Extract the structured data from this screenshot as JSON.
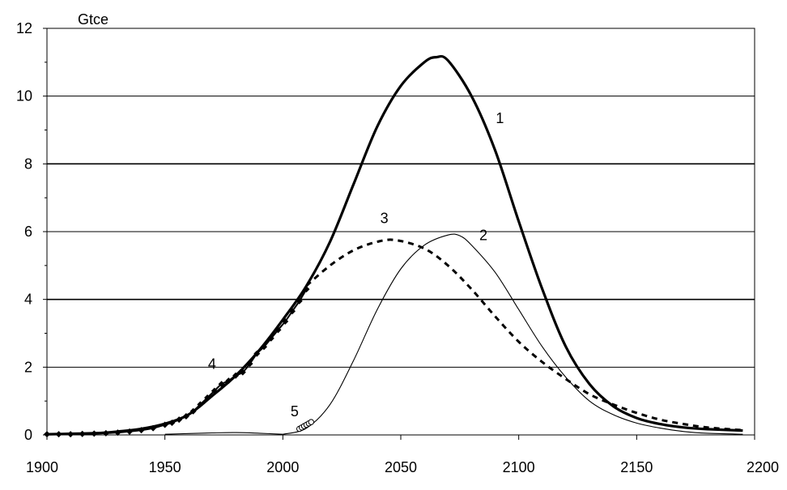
{
  "chart_data": {
    "type": "line",
    "title": "",
    "unit_label": "Gtce",
    "xlabel": "",
    "ylabel": "",
    "xlim": [
      1900,
      2200
    ],
    "ylim": [
      0,
      12
    ],
    "x_ticks": [
      "1900",
      "1950",
      "2000",
      "2050",
      "2100",
      "2150",
      "2200"
    ],
    "y_ticks": [
      "0",
      "2",
      "4",
      "6",
      "8",
      "10",
      "12"
    ],
    "grid": "horizontal",
    "legend": "none",
    "colors": {
      "lines": "#000000",
      "background": "#ffffff"
    },
    "series": [
      {
        "id": "1",
        "label": "1",
        "style": "thick",
        "label_at": [
          2092,
          9.2
        ],
        "points": [
          [
            1900,
            0.02
          ],
          [
            1920,
            0.05
          ],
          [
            1930,
            0.1
          ],
          [
            1940,
            0.18
          ],
          [
            1950,
            0.33
          ],
          [
            1960,
            0.6
          ],
          [
            1970,
            1.15
          ],
          [
            1980,
            1.75
          ],
          [
            1990,
            2.5
          ],
          [
            2000,
            3.4
          ],
          [
            2010,
            4.4
          ],
          [
            2020,
            5.7
          ],
          [
            2030,
            7.4
          ],
          [
            2040,
            9.1
          ],
          [
            2050,
            10.3
          ],
          [
            2060,
            11.0
          ],
          [
            2065,
            11.15
          ],
          [
            2070,
            11.05
          ],
          [
            2080,
            10.0
          ],
          [
            2090,
            8.4
          ],
          [
            2100,
            6.3
          ],
          [
            2110,
            4.3
          ],
          [
            2120,
            2.6
          ],
          [
            2130,
            1.5
          ],
          [
            2140,
            0.85
          ],
          [
            2150,
            0.5
          ],
          [
            2160,
            0.32
          ],
          [
            2170,
            0.22
          ],
          [
            2180,
            0.17
          ],
          [
            2195,
            0.13
          ]
        ]
      },
      {
        "id": "2",
        "label": "2",
        "style": "thin",
        "label_at": [
          2085,
          5.75
        ],
        "points": [
          [
            2000,
            0.02
          ],
          [
            2010,
            0.2
          ],
          [
            2020,
            0.9
          ],
          [
            2030,
            2.2
          ],
          [
            2040,
            3.7
          ],
          [
            2050,
            4.9
          ],
          [
            2060,
            5.6
          ],
          [
            2070,
            5.9
          ],
          [
            2075,
            5.88
          ],
          [
            2080,
            5.6
          ],
          [
            2090,
            4.8
          ],
          [
            2100,
            3.7
          ],
          [
            2110,
            2.6
          ],
          [
            2120,
            1.7
          ],
          [
            2130,
            1.0
          ],
          [
            2140,
            0.6
          ],
          [
            2150,
            0.35
          ],
          [
            2160,
            0.2
          ],
          [
            2170,
            0.1
          ],
          [
            2180,
            0.05
          ],
          [
            2195,
            0.02
          ]
        ]
      },
      {
        "id": "3",
        "label": "3",
        "style": "dashed",
        "label_at": [
          2043,
          6.25
        ],
        "points": [
          [
            2010,
            4.4
          ],
          [
            2020,
            5.0
          ],
          [
            2030,
            5.45
          ],
          [
            2040,
            5.7
          ],
          [
            2048,
            5.75
          ],
          [
            2060,
            5.5
          ],
          [
            2070,
            5.0
          ],
          [
            2080,
            4.3
          ],
          [
            2090,
            3.5
          ],
          [
            2100,
            2.75
          ],
          [
            2110,
            2.15
          ],
          [
            2120,
            1.65
          ],
          [
            2130,
            1.2
          ],
          [
            2140,
            0.9
          ],
          [
            2150,
            0.65
          ],
          [
            2160,
            0.45
          ],
          [
            2170,
            0.32
          ],
          [
            2180,
            0.22
          ],
          [
            2195,
            0.14
          ]
        ]
      },
      {
        "id": "4",
        "label": "4",
        "style": "markers",
        "label_at": [
          1970,
          1.95
        ],
        "points": [
          [
            1900,
            0.02
          ],
          [
            1905,
            0.02
          ],
          [
            1910,
            0.02
          ],
          [
            1915,
            0.03
          ],
          [
            1920,
            0.04
          ],
          [
            1925,
            0.05
          ],
          [
            1930,
            0.07
          ],
          [
            1935,
            0.1
          ],
          [
            1940,
            0.14
          ],
          [
            1945,
            0.2
          ],
          [
            1950,
            0.3
          ],
          [
            1953,
            0.36
          ],
          [
            1956,
            0.45
          ],
          [
            1959,
            0.55
          ],
          [
            1962,
            0.7
          ],
          [
            1965,
            0.9
          ],
          [
            1968,
            1.1
          ],
          [
            1971,
            1.3
          ],
          [
            1974,
            1.5
          ],
          [
            1977,
            1.6
          ],
          [
            1980,
            1.75
          ],
          [
            1983,
            1.85
          ],
          [
            1986,
            2.1
          ],
          [
            1989,
            2.4
          ],
          [
            1992,
            2.6
          ],
          [
            1995,
            2.85
          ],
          [
            1998,
            3.1
          ],
          [
            2001,
            3.35
          ],
          [
            2004,
            3.65
          ],
          [
            2007,
            3.95
          ],
          [
            2010,
            4.3
          ]
        ]
      },
      {
        "id": "5",
        "label": "5",
        "style": "open-markers",
        "label_at": [
          2005,
          0.55
        ],
        "points": [
          [
            2007,
            0.18
          ],
          [
            2008,
            0.22
          ],
          [
            2009,
            0.26
          ],
          [
            2010,
            0.3
          ],
          [
            2011,
            0.34
          ],
          [
            2012,
            0.38
          ]
        ]
      },
      {
        "id": "6",
        "label": "",
        "style": "thin",
        "label_at": null,
        "points": [
          [
            1950,
            0.02
          ],
          [
            1960,
            0.04
          ],
          [
            1970,
            0.06
          ],
          [
            1980,
            0.07
          ],
          [
            1990,
            0.05
          ],
          [
            2000,
            0.02
          ]
        ]
      }
    ]
  }
}
